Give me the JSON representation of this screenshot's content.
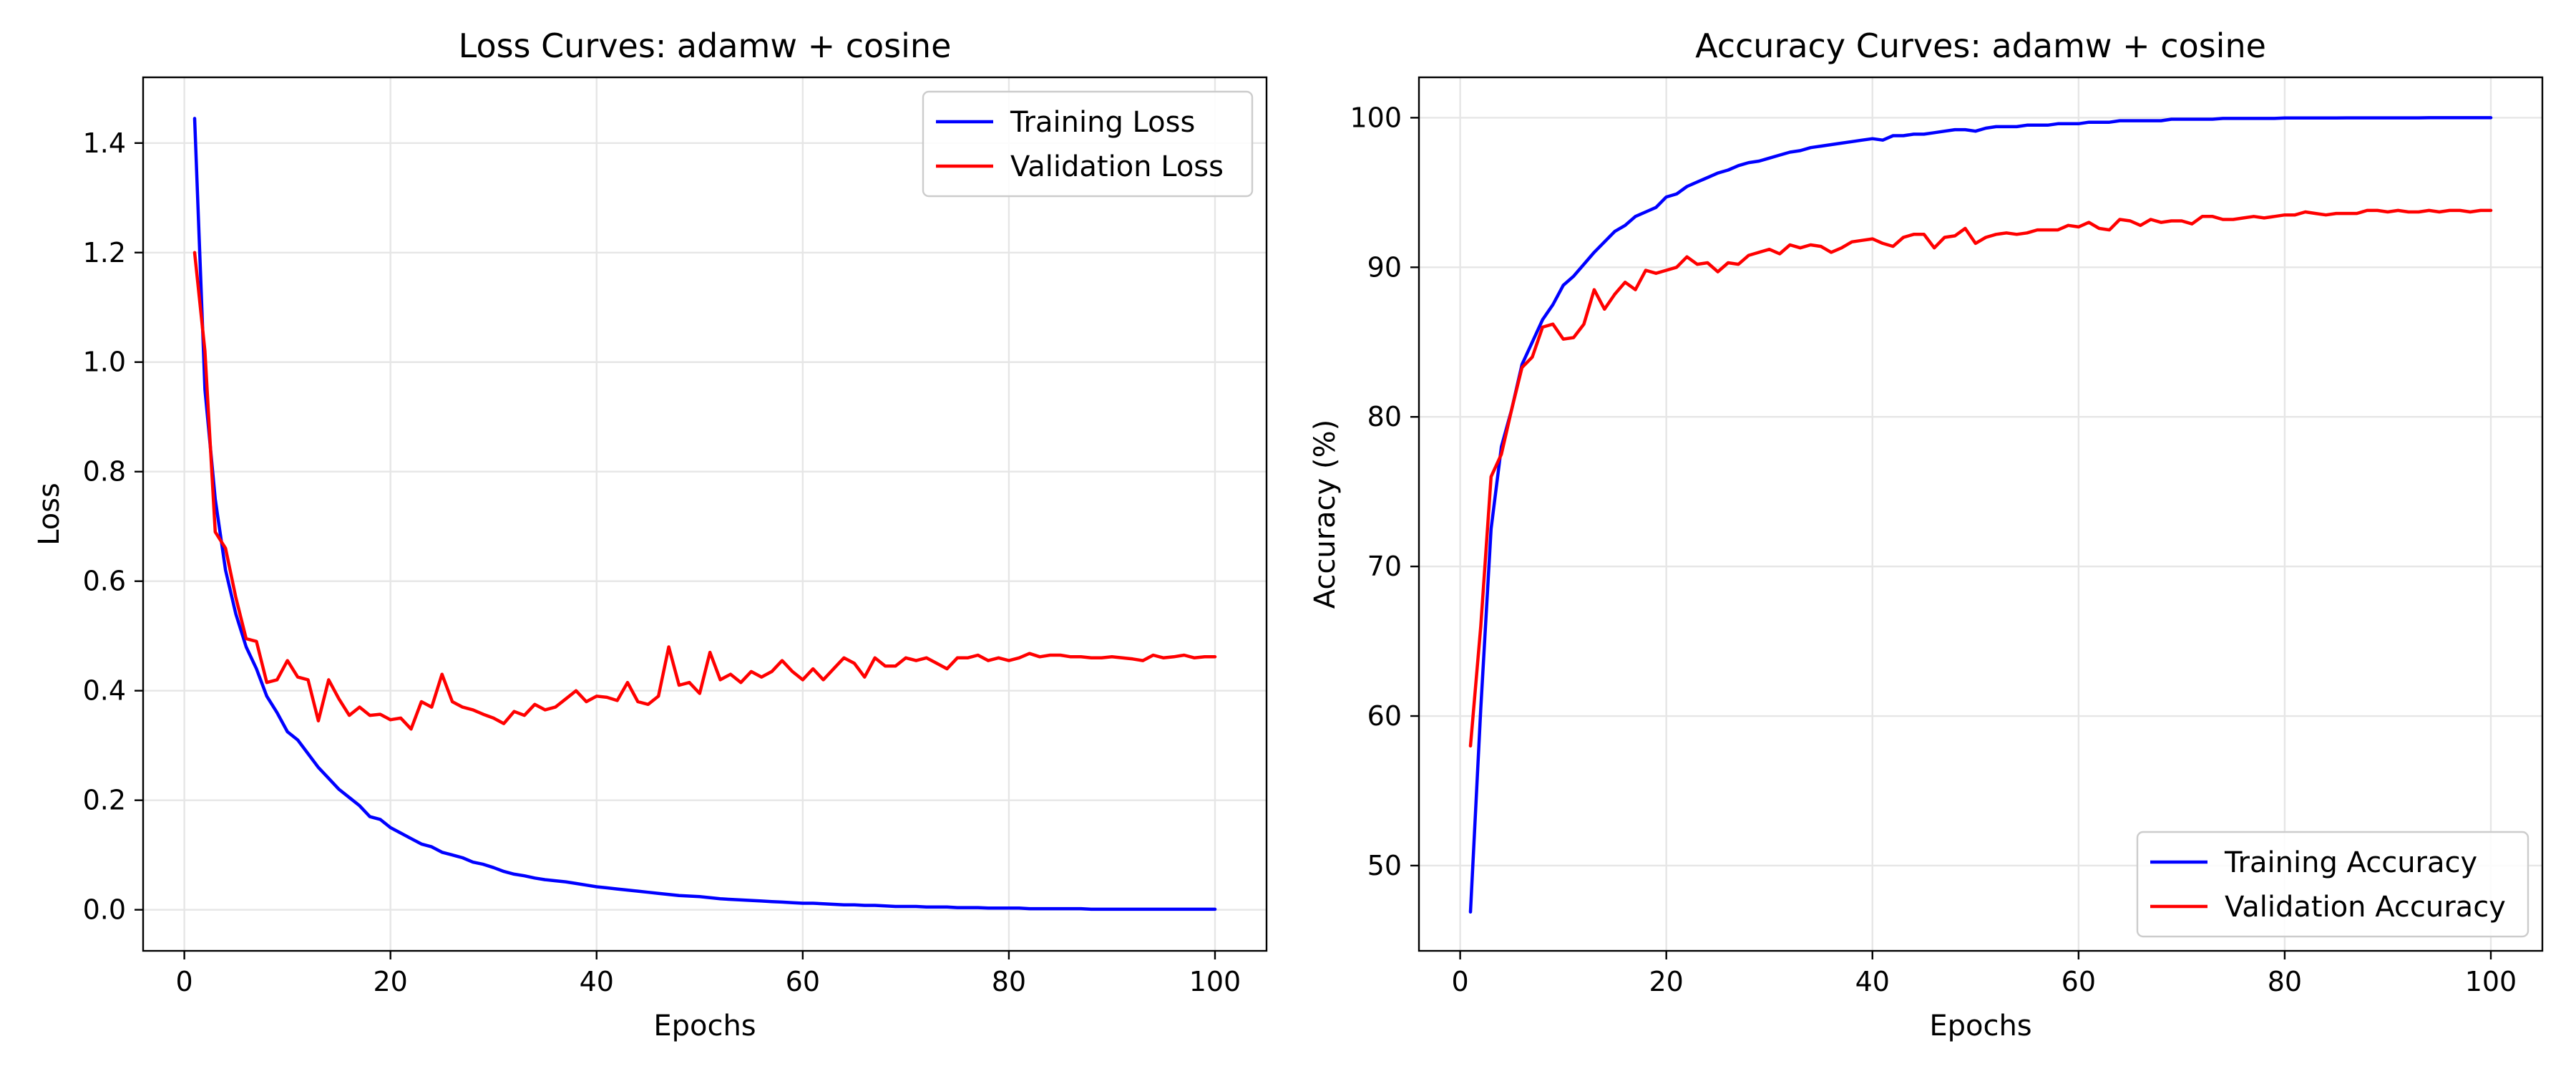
{
  "chart_data": [
    {
      "type": "line",
      "title": "Loss Curves: adamw + cosine",
      "xlabel": "Epochs",
      "ylabel": "Loss",
      "xlim": [
        -4,
        105
      ],
      "ylim": [
        -0.075,
        1.52
      ],
      "xticks": [
        0,
        20,
        40,
        60,
        80,
        100
      ],
      "yticks": [
        0.0,
        0.2,
        0.4,
        0.6,
        0.8,
        1.0,
        1.2,
        1.4
      ],
      "ytick_labels": [
        "0.0",
        "0.2",
        "0.4",
        "0.6",
        "0.8",
        "1.0",
        "1.2",
        "1.4"
      ],
      "grid": true,
      "legend_position": "top-right",
      "x": [
        1,
        2,
        3,
        4,
        5,
        6,
        7,
        8,
        9,
        10,
        11,
        12,
        13,
        14,
        15,
        16,
        17,
        18,
        19,
        20,
        21,
        22,
        23,
        24,
        25,
        26,
        27,
        28,
        29,
        30,
        31,
        32,
        33,
        34,
        35,
        36,
        37,
        38,
        39,
        40,
        41,
        42,
        43,
        44,
        45,
        46,
        47,
        48,
        49,
        50,
        51,
        52,
        53,
        54,
        55,
        56,
        57,
        58,
        59,
        60,
        61,
        62,
        63,
        64,
        65,
        66,
        67,
        68,
        69,
        70,
        71,
        72,
        73,
        74,
        75,
        76,
        77,
        78,
        79,
        80,
        81,
        82,
        83,
        84,
        85,
        86,
        87,
        88,
        89,
        90,
        91,
        92,
        93,
        94,
        95,
        96,
        97,
        98,
        99,
        100
      ],
      "series": [
        {
          "name": "Training Loss",
          "color": "#0000ff",
          "values": [
            1.445,
            0.95,
            0.75,
            0.62,
            0.54,
            0.48,
            0.44,
            0.39,
            0.36,
            0.325,
            0.31,
            0.285,
            0.26,
            0.24,
            0.22,
            0.205,
            0.19,
            0.17,
            0.165,
            0.15,
            0.14,
            0.13,
            0.12,
            0.115,
            0.105,
            0.1,
            0.095,
            0.087,
            0.083,
            0.077,
            0.07,
            0.065,
            0.062,
            0.058,
            0.055,
            0.053,
            0.051,
            0.048,
            0.045,
            0.042,
            0.04,
            0.038,
            0.036,
            0.034,
            0.032,
            0.03,
            0.028,
            0.026,
            0.025,
            0.024,
            0.022,
            0.02,
            0.019,
            0.018,
            0.017,
            0.016,
            0.015,
            0.014,
            0.013,
            0.012,
            0.012,
            0.011,
            0.01,
            0.009,
            0.009,
            0.008,
            0.008,
            0.007,
            0.006,
            0.006,
            0.006,
            0.005,
            0.005,
            0.005,
            0.004,
            0.004,
            0.004,
            0.003,
            0.003,
            0.003,
            0.003,
            0.002,
            0.002,
            0.002,
            0.002,
            0.002,
            0.002,
            0.001,
            0.001,
            0.001,
            0.001,
            0.001,
            0.001,
            0.001,
            0.001,
            0.001,
            0.001,
            0.001,
            0.001,
            0.001
          ]
        },
        {
          "name": "Validation Loss",
          "color": "#ff0000",
          "values": [
            1.2,
            1.02,
            0.69,
            0.66,
            0.57,
            0.495,
            0.49,
            0.415,
            0.42,
            0.455,
            0.425,
            0.42,
            0.345,
            0.42,
            0.385,
            0.355,
            0.37,
            0.355,
            0.357,
            0.347,
            0.35,
            0.33,
            0.38,
            0.37,
            0.43,
            0.38,
            0.37,
            0.365,
            0.357,
            0.35,
            0.34,
            0.362,
            0.355,
            0.375,
            0.365,
            0.37,
            0.385,
            0.4,
            0.38,
            0.39,
            0.388,
            0.382,
            0.415,
            0.38,
            0.375,
            0.39,
            0.48,
            0.41,
            0.415,
            0.395,
            0.47,
            0.42,
            0.43,
            0.415,
            0.435,
            0.425,
            0.435,
            0.455,
            0.435,
            0.42,
            0.44,
            0.42,
            0.44,
            0.46,
            0.45,
            0.425,
            0.46,
            0.445,
            0.445,
            0.46,
            0.455,
            0.46,
            0.45,
            0.44,
            0.46,
            0.46,
            0.465,
            0.455,
            0.46,
            0.455,
            0.46,
            0.468,
            0.462,
            0.465,
            0.465,
            0.462,
            0.462,
            0.46,
            0.46,
            0.462,
            0.46,
            0.458,
            0.455,
            0.465,
            0.46,
            0.462,
            0.465,
            0.46,
            0.462,
            0.462
          ]
        }
      ]
    },
    {
      "type": "line",
      "title": "Accuracy Curves: adamw + cosine",
      "xlabel": "Epochs",
      "ylabel": "Accuracy (%)",
      "xlim": [
        -4,
        105
      ],
      "ylim": [
        44.3,
        102.7
      ],
      "xticks": [
        0,
        20,
        40,
        60,
        80,
        100
      ],
      "yticks": [
        50,
        60,
        70,
        80,
        90,
        100
      ],
      "ytick_labels": [
        "50",
        "60",
        "70",
        "80",
        "90",
        "100"
      ],
      "grid": true,
      "legend_position": "bottom-right",
      "x": [
        1,
        2,
        3,
        4,
        5,
        6,
        7,
        8,
        9,
        10,
        11,
        12,
        13,
        14,
        15,
        16,
        17,
        18,
        19,
        20,
        21,
        22,
        23,
        24,
        25,
        26,
        27,
        28,
        29,
        30,
        31,
        32,
        33,
        34,
        35,
        36,
        37,
        38,
        39,
        40,
        41,
        42,
        43,
        44,
        45,
        46,
        47,
        48,
        49,
        50,
        51,
        52,
        53,
        54,
        55,
        56,
        57,
        58,
        59,
        60,
        61,
        62,
        63,
        64,
        65,
        66,
        67,
        68,
        69,
        70,
        71,
        72,
        73,
        74,
        75,
        76,
        77,
        78,
        79,
        80,
        81,
        82,
        83,
        84,
        85,
        86,
        87,
        88,
        89,
        90,
        91,
        92,
        93,
        94,
        95,
        96,
        97,
        98,
        99,
        100
      ],
      "series": [
        {
          "name": "Training Accuracy",
          "color": "#0000ff",
          "values": [
            46.9,
            60.5,
            72.5,
            78.0,
            80.5,
            83.5,
            85.0,
            86.5,
            87.5,
            88.8,
            89.4,
            90.2,
            91.0,
            91.7,
            92.4,
            92.8,
            93.4,
            93.7,
            94.0,
            94.7,
            94.9,
            95.4,
            95.7,
            96.0,
            96.3,
            96.5,
            96.8,
            97.0,
            97.1,
            97.3,
            97.5,
            97.7,
            97.8,
            98.0,
            98.1,
            98.2,
            98.3,
            98.4,
            98.5,
            98.6,
            98.5,
            98.8,
            98.8,
            98.9,
            98.9,
            99.0,
            99.1,
            99.2,
            99.2,
            99.1,
            99.3,
            99.4,
            99.4,
            99.4,
            99.5,
            99.5,
            99.5,
            99.6,
            99.6,
            99.6,
            99.7,
            99.7,
            99.7,
            99.8,
            99.8,
            99.8,
            99.8,
            99.8,
            99.9,
            99.9,
            99.9,
            99.9,
            99.9,
            99.95,
            99.95,
            99.95,
            99.95,
            99.95,
            99.95,
            99.98,
            99.98,
            99.98,
            99.98,
            99.98,
            99.98,
            99.99,
            99.99,
            99.99,
            99.99,
            99.99,
            99.99,
            99.99,
            99.99,
            100,
            100,
            100,
            100,
            100,
            100,
            100
          ]
        },
        {
          "name": "Validation Accuracy",
          "color": "#ff0000",
          "values": [
            58.0,
            66.0,
            76.0,
            77.5,
            80.5,
            83.3,
            84.0,
            86.0,
            86.2,
            85.2,
            85.3,
            86.2,
            88.5,
            87.2,
            88.2,
            89.0,
            88.5,
            89.8,
            89.6,
            89.8,
            90.0,
            90.7,
            90.2,
            90.3,
            89.7,
            90.3,
            90.2,
            90.8,
            91.0,
            91.2,
            90.9,
            91.5,
            91.3,
            91.5,
            91.4,
            91.0,
            91.3,
            91.7,
            91.8,
            91.9,
            91.6,
            91.4,
            92.0,
            92.2,
            92.2,
            91.3,
            92.0,
            92.1,
            92.6,
            91.6,
            92.0,
            92.2,
            92.3,
            92.2,
            92.3,
            92.5,
            92.5,
            92.5,
            92.8,
            92.7,
            93.0,
            92.6,
            92.5,
            93.2,
            93.1,
            92.8,
            93.2,
            93.0,
            93.1,
            93.1,
            92.9,
            93.4,
            93.4,
            93.2,
            93.2,
            93.3,
            93.4,
            93.3,
            93.4,
            93.5,
            93.5,
            93.7,
            93.6,
            93.5,
            93.6,
            93.6,
            93.6,
            93.8,
            93.8,
            93.7,
            93.8,
            93.7,
            93.7,
            93.8,
            93.7,
            93.8,
            93.8,
            93.7,
            93.8,
            93.8
          ]
        }
      ]
    }
  ]
}
